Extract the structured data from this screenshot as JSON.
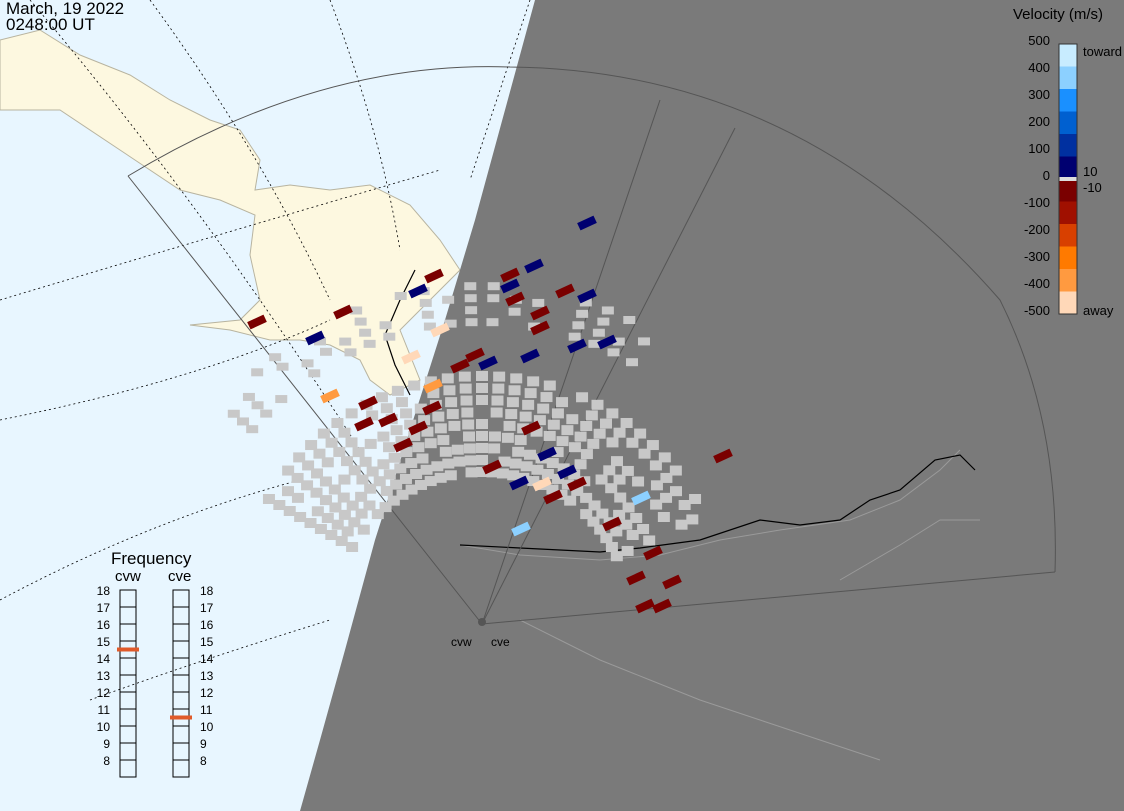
{
  "header": {
    "date": "March, 19 2022",
    "time": "0248:00 UT"
  },
  "colorbar": {
    "title": "Velocity (m/s)",
    "tick_labels": [
      "500",
      "400",
      "300",
      "200",
      "100",
      "0",
      "-100",
      "-200",
      "-300",
      "-400",
      "-500"
    ],
    "mid_labels": [
      "10",
      "-10"
    ],
    "toward_label": "toward",
    "away_label": "away",
    "colors": [
      "#ffd8b8",
      "#ff9a40",
      "#ff7a00",
      "#d84000",
      "#a01000",
      "#7a0000",
      "#000070",
      "#0030a0",
      "#0060d0",
      "#1a90ff",
      "#8cd0ff",
      "#c8ecff"
    ]
  },
  "frequency": {
    "title": "Frequency",
    "radars": [
      {
        "name": "cvw",
        "selected_mhz": 15
      },
      {
        "name": "cve",
        "selected_mhz": 11
      }
    ],
    "scale": [
      "18",
      "17",
      "16",
      "15",
      "14",
      "13",
      "12",
      "11",
      "10",
      "9",
      "8"
    ],
    "marker_color": "#e05a2a"
  },
  "map": {
    "radar_labels": [
      "cvw",
      "cve"
    ],
    "ocean_color": "#e8f6ff",
    "land_day_color": "#fdf8e0",
    "night_color": "#7a7a7a",
    "ground_scatter_color": "#c8c8c8"
  }
}
